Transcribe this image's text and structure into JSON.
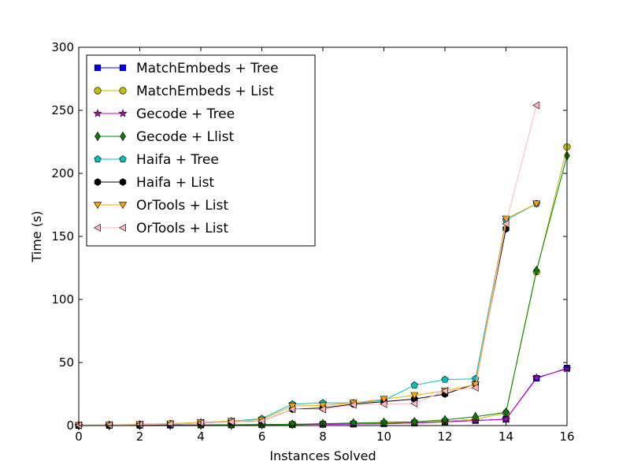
{
  "chart_data": {
    "type": "line",
    "title": "",
    "xlabel": "Instances Solved",
    "ylabel": "Time (s)",
    "xlim": [
      0,
      16
    ],
    "ylim": [
      0,
      300
    ],
    "xticks": [
      0,
      2,
      4,
      6,
      8,
      10,
      12,
      14,
      16
    ],
    "yticks": [
      0,
      50,
      100,
      150,
      200,
      250,
      300
    ],
    "grid": false,
    "legend_position": "top-left",
    "series": [
      {
        "name": "MatchEmbeds + Tree",
        "color": "#0000ff",
        "marker": "square",
        "x": [
          0,
          1,
          2,
          3,
          4,
          5,
          6,
          7,
          8,
          9,
          10,
          11,
          12,
          13,
          14,
          15,
          16
        ],
        "y": [
          0.1,
          0.2,
          0.3,
          0.4,
          0.5,
          0.6,
          0.7,
          0.8,
          1.0,
          1.2,
          1.5,
          2.0,
          3.0,
          4.0,
          5.0,
          37.5,
          45.5
        ]
      },
      {
        "name": "MatchEmbeds + List",
        "color": "#bfbf00",
        "marker": "circle",
        "x": [
          0,
          1,
          2,
          3,
          4,
          5,
          6,
          7,
          8,
          9,
          10,
          11,
          12,
          13,
          14,
          15,
          16
        ],
        "y": [
          0.1,
          0.2,
          0.3,
          0.4,
          0.5,
          0.6,
          0.7,
          0.9,
          1.2,
          1.5,
          2.0,
          2.5,
          3.5,
          5.0,
          10.0,
          122.0,
          221.0
        ]
      },
      {
        "name": "Gecode + Tree",
        "color": "#bf00bf",
        "marker": "star",
        "x": [
          0,
          1,
          2,
          3,
          4,
          5,
          6,
          7,
          8,
          9,
          10,
          11,
          12,
          13,
          14,
          15,
          16
        ],
        "y": [
          0.1,
          0.2,
          0.3,
          0.4,
          0.5,
          0.6,
          0.7,
          0.8,
          1.0,
          1.2,
          1.5,
          2.0,
          3.0,
          4.0,
          5.0,
          38.0,
          45.0
        ]
      },
      {
        "name": "Gecode + Llist",
        "color": "#008000",
        "marker": "diamond",
        "x": [
          0,
          1,
          2,
          3,
          4,
          5,
          6,
          7,
          8,
          9,
          10,
          11,
          12,
          13,
          14,
          15,
          16
        ],
        "y": [
          0.1,
          0.2,
          0.3,
          0.4,
          0.5,
          0.6,
          0.8,
          1.0,
          1.5,
          2.0,
          2.5,
          3.0,
          4.5,
          7.0,
          10.5,
          123.0,
          214.0
        ]
      },
      {
        "name": "Haifa + Tree",
        "color": "#00bfbf",
        "marker": "pentagon",
        "x": [
          0,
          1,
          2,
          3,
          4,
          5,
          6,
          7,
          8,
          9,
          10,
          11,
          12,
          13,
          14,
          15
        ],
        "y": [
          0.3,
          0.5,
          1.0,
          1.5,
          2.5,
          3.5,
          5.5,
          17.0,
          18.0,
          18.0,
          20.0,
          32.0,
          36.5,
          37.0,
          163.0,
          176.0
        ]
      },
      {
        "name": "Haifa + List",
        "color": "#000000",
        "marker": "hexagon",
        "x": [
          0,
          1,
          2,
          3,
          4,
          5,
          6,
          7,
          8,
          9,
          10,
          11,
          12,
          13,
          14
        ],
        "y": [
          0.2,
          0.4,
          0.8,
          1.2,
          2.0,
          3.0,
          3.5,
          13.0,
          14.0,
          17.0,
          19.0,
          21.0,
          25.0,
          33.0,
          156.0
        ]
      },
      {
        "name": "OrTools + List",
        "color": "#ffa500",
        "marker": "triangle-down",
        "x": [
          0,
          1,
          2,
          3,
          4,
          5,
          6,
          7,
          8,
          9,
          10,
          11,
          12,
          13,
          14,
          15
        ],
        "y": [
          0.3,
          0.5,
          1.0,
          1.5,
          2.5,
          3.5,
          4.5,
          15.5,
          16.0,
          18.0,
          21.0,
          24.0,
          27.5,
          32.5,
          164.0,
          176.0
        ]
      },
      {
        "name": "OrTools + List",
        "color": "#ffb6c1",
        "marker": "triangle-left",
        "x": [
          0,
          1,
          2,
          3,
          4,
          5,
          6,
          7,
          8,
          9,
          10,
          11,
          12,
          13,
          14,
          15
        ],
        "y": [
          0.2,
          0.4,
          0.8,
          1.2,
          2.0,
          3.0,
          3.5,
          13.0,
          13.0,
          16.5,
          17.0,
          17.5,
          27.5,
          30.0,
          160.0,
          254.0
        ]
      }
    ]
  }
}
